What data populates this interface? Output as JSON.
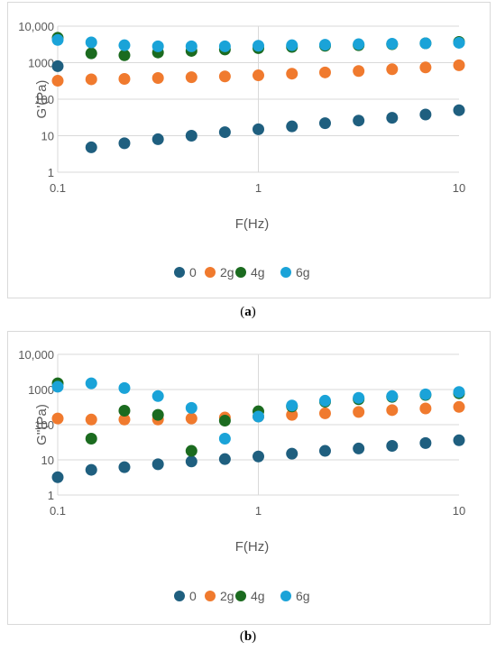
{
  "captions": {
    "a_open": "(",
    "a_letter": "a",
    "a_close": ")",
    "b_open": "(",
    "b_letter": "b",
    "b_close": ")"
  },
  "colors": {
    "0": "#1f5f7f",
    "2g": "#f07a2e",
    "4g": "#1b6b1f",
    "6g": "#1aa3d8"
  },
  "chart_data": [
    {
      "type": "scatter",
      "ylabel": "G'(Pa)",
      "xlabel": "F(Hz)",
      "xscale": "log",
      "yscale": "log",
      "xlim": [
        0.1,
        10
      ],
      "ylim": [
        1,
        10000
      ],
      "xticks": [
        "0.1",
        "1",
        "10"
      ],
      "yticks": [
        "1",
        "10",
        "100",
        "1000",
        "10,000"
      ],
      "grid": "horizontal",
      "legend_position": "bottom",
      "series": [
        {
          "name": "0",
          "x": [
            0.1,
            0.147,
            0.215,
            0.316,
            0.464,
            0.681,
            1,
            1.47,
            2.15,
            3.16,
            4.64,
            6.81,
            10
          ],
          "y": [
            800,
            4.8,
            6.2,
            8,
            10,
            12.5,
            15,
            18,
            22,
            26,
            31,
            38,
            50
          ]
        },
        {
          "name": "2g",
          "x": [
            0.1,
            0.147,
            0.215,
            0.316,
            0.464,
            0.681,
            1,
            1.47,
            2.15,
            3.16,
            4.64,
            6.81,
            10
          ],
          "y": [
            320,
            350,
            360,
            380,
            400,
            420,
            450,
            500,
            540,
            590,
            660,
            740,
            850
          ]
        },
        {
          "name": "4g",
          "x": [
            0.1,
            0.147,
            0.215,
            0.316,
            0.464,
            0.681,
            1,
            1.47,
            2.15,
            3.16,
            4.64,
            6.81,
            10
          ],
          "y": [
            4800,
            1800,
            1600,
            1900,
            2100,
            2300,
            2500,
            2700,
            2900,
            3000,
            3200,
            3400,
            3700
          ]
        },
        {
          "name": "6g",
          "x": [
            0.1,
            0.147,
            0.215,
            0.316,
            0.464,
            0.681,
            1,
            1.47,
            2.15,
            3.16,
            4.64,
            6.81,
            10
          ],
          "y": [
            4200,
            3600,
            3000,
            2800,
            2800,
            2800,
            2900,
            3000,
            3100,
            3200,
            3300,
            3400,
            3500
          ]
        }
      ]
    },
    {
      "type": "scatter",
      "ylabel": "G''(Pa)",
      "xlabel": "F(Hz)",
      "xscale": "log",
      "yscale": "log",
      "xlim": [
        0.1,
        10
      ],
      "ylim": [
        1,
        10000
      ],
      "xticks": [
        "0.1",
        "1",
        "10"
      ],
      "yticks": [
        "1",
        "10",
        "100",
        "1000",
        "10,000"
      ],
      "grid": "horizontal",
      "legend_position": "bottom",
      "series": [
        {
          "name": "0",
          "x": [
            0.1,
            0.147,
            0.215,
            0.316,
            0.464,
            0.681,
            1,
            1.47,
            2.15,
            3.16,
            4.64,
            6.81,
            10
          ],
          "y": [
            3.2,
            5.2,
            6.2,
            7.5,
            9,
            10.5,
            12.5,
            15,
            18,
            21,
            25,
            30,
            36
          ]
        },
        {
          "name": "2g",
          "x": [
            0.1,
            0.147,
            0.215,
            0.316,
            0.464,
            0.681,
            1,
            1.47,
            2.15,
            3.16,
            4.64,
            6.81,
            10
          ],
          "y": [
            150,
            140,
            140,
            140,
            150,
            160,
            170,
            190,
            210,
            230,
            260,
            290,
            320
          ]
        },
        {
          "name": "4g",
          "x": [
            0.1,
            0.147,
            0.215,
            0.316,
            0.464,
            0.681,
            1,
            1.47,
            2.15,
            3.16,
            4.64,
            6.81,
            10
          ],
          "y": [
            1500,
            40,
            250,
            190,
            18,
            130,
            240,
            330,
            450,
            530,
            620,
            700,
            780
          ]
        },
        {
          "name": "6g",
          "x": [
            0.1,
            0.147,
            0.215,
            0.316,
            0.464,
            0.681,
            1,
            1.47,
            2.15,
            3.16,
            4.64,
            6.81,
            10
          ],
          "y": [
            1200,
            1500,
            1100,
            650,
            300,
            40,
            170,
            350,
            480,
            580,
            650,
            730,
            850
          ]
        }
      ]
    }
  ]
}
